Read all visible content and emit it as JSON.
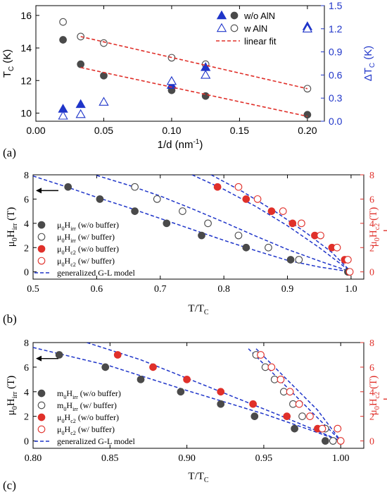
{
  "chart_data": [
    {
      "panel_label": "(a)",
      "type": "scatter",
      "xlabel_main": "1/d (nm",
      "xlabel_sup": "-1",
      "xlabel_end": ")",
      "ylabel_left_main": "T",
      "ylabel_left_sub": "C",
      "ylabel_left_end": " (K)",
      "ylabel_right_main": "ΔT",
      "ylabel_right_sub": "C",
      "ylabel_right_end": " (K)",
      "xlim": [
        0.0,
        0.2125
      ],
      "ylim_left": [
        9.5,
        16.6
      ],
      "ylim_right": [
        0.0,
        1.5
      ],
      "xticks": [
        0.0,
        0.05,
        0.1,
        0.15,
        0.2
      ],
      "xtick_labels": [
        "0.00",
        "0.05",
        "0.10",
        "0.15",
        "0.20"
      ],
      "yticks_left": [
        10,
        12,
        14,
        16
      ],
      "yticks_right": [
        0.0,
        0.3,
        0.6,
        0.9,
        1.2,
        1.5
      ],
      "ytick_labels_right": [
        "0.0",
        "0.3",
        "0.6",
        "0.9",
        "1.2",
        "1.5"
      ],
      "right_axis_color": "#1f35c9",
      "legend": [
        "w/o AlN",
        "w AlN",
        "linear fit"
      ],
      "series": [
        {
          "name": "w/o AlN",
          "axis": "left",
          "marker": "circle",
          "filled": true,
          "color": "#4a4a4a",
          "x": [
            0.02,
            0.033,
            0.05,
            0.1,
            0.125,
            0.2
          ],
          "y": [
            14.5,
            13.0,
            12.3,
            11.4,
            11.05,
            9.9
          ]
        },
        {
          "name": "w AlN",
          "axis": "left",
          "marker": "circle",
          "filled": false,
          "color": "#4a4a4a",
          "x": [
            0.02,
            0.033,
            0.05,
            0.1,
            0.125,
            0.2
          ],
          "y": [
            15.6,
            14.7,
            14.3,
            13.4,
            13.0,
            11.5
          ]
        },
        {
          "name": "w/o AlN",
          "axis": "right",
          "marker": "triangle",
          "filled": true,
          "color": "#1f35c9",
          "x": [
            0.02,
            0.033,
            0.1,
            0.125,
            0.2
          ],
          "y": [
            0.16,
            0.22,
            0.47,
            0.7,
            1.23
          ]
        },
        {
          "name": "w AlN",
          "axis": "right",
          "marker": "triangle",
          "filled": false,
          "color": "#1f35c9",
          "x": [
            0.02,
            0.033,
            0.05,
            0.1,
            0.125,
            0.2
          ],
          "y": [
            0.07,
            0.09,
            0.25,
            0.52,
            0.6,
            1.2
          ]
        },
        {
          "name": "linear fit",
          "axis": "left",
          "marker": "dashed-line",
          "color": "#e0302a",
          "x": [
            0.033,
            0.2
          ],
          "y": [
            12.8,
            9.8
          ]
        },
        {
          "name": "linear fit",
          "axis": "left",
          "marker": "dashed-line",
          "color": "#e0302a",
          "x": [
            0.033,
            0.2
          ],
          "y": [
            14.7,
            11.5
          ]
        }
      ]
    },
    {
      "panel_label": "(b)",
      "type": "scatter",
      "xlabel_main": "T/T",
      "xlabel_sub": "C",
      "ylabel_left": {
        "a": "μ",
        "b": "0",
        "c": "H",
        "d": "irr",
        "e": " (T)"
      },
      "ylabel_right": {
        "a": "μ",
        "b": "0",
        "c": "H",
        "d": "c2",
        "e": " (T)"
      },
      "right_axis_color": "#e0302a",
      "xlim": [
        0.5,
        1.02
      ],
      "ylim": [
        -0.6,
        8
      ],
      "xticks": [
        0.5,
        0.6,
        0.7,
        0.8,
        0.9,
        1.0
      ],
      "xtick_labels": [
        "0.5",
        "0.6",
        "0.7",
        "0.8",
        "0.9",
        "1.0"
      ],
      "yticks": [
        0,
        2,
        4,
        6,
        8
      ],
      "legend": [
        {
          "a": "μ",
          "b": "0",
          "c": "H",
          "d": "irr",
          "e": " (w/o buffer)"
        },
        {
          "a": "μ",
          "b": "0",
          "c": "H",
          "d": "irr",
          "e": " (w/ buffer)"
        },
        {
          "a": "μ",
          "b": "0",
          "c": "H",
          "d": "c2",
          "e": " (w/o buffer)"
        },
        {
          "a": "μ",
          "b": "0",
          "c": "H",
          "d": "c2",
          "e": " (w/ buffer)"
        },
        {
          "a": "generalized G-L model",
          "b": "",
          "c": "",
          "d": "",
          "e": ""
        }
      ],
      "series": [
        {
          "name": "Hirr w/o buffer",
          "marker": "circle",
          "filled": true,
          "color": "#4a4a4a",
          "x": [
            0.555,
            0.605,
            0.66,
            0.71,
            0.765,
            0.835,
            0.905,
            0.995
          ],
          "y": [
            7,
            6,
            5,
            4,
            3,
            2,
            1,
            0
          ]
        },
        {
          "name": "Hirr w/ buffer",
          "marker": "circle",
          "filled": false,
          "color": "#4a4a4a",
          "x": [
            0.66,
            0.695,
            0.735,
            0.775,
            0.823,
            0.87,
            0.918,
            0.997
          ],
          "y": [
            7,
            6,
            5,
            4,
            3,
            2,
            1,
            0
          ]
        },
        {
          "name": "Hc2 w/o buffer",
          "marker": "circle",
          "filled": true,
          "color": "#e0302a",
          "x": [
            0.79,
            0.835,
            0.875,
            0.908,
            0.943,
            0.97,
            0.99
          ],
          "y": [
            7,
            6,
            5,
            4,
            3,
            2,
            1
          ]
        },
        {
          "name": "Hc2 w/ buffer",
          "marker": "circle",
          "filled": false,
          "color": "#e0302a",
          "x": [
            0.823,
            0.853,
            0.893,
            0.922,
            0.952,
            0.978,
            0.995,
            0.998
          ],
          "y": [
            7,
            6,
            5,
            4,
            3,
            2,
            1,
            0
          ]
        },
        {
          "name": "G-L fit",
          "marker": "dashed-line",
          "color": "#1f35c9",
          "x": [
            0.5,
            0.55,
            0.6,
            0.65,
            0.7,
            0.75,
            0.8,
            0.85,
            0.9,
            0.95,
            1.0
          ],
          "y": [
            7.9,
            7.05,
            6.15,
            5.3,
            4.4,
            3.5,
            2.6,
            1.75,
            0.95,
            0.4,
            0.0
          ]
        },
        {
          "name": "G-L fit",
          "marker": "dashed-line",
          "color": "#1f35c9",
          "x": [
            0.6,
            0.65,
            0.7,
            0.75,
            0.8,
            0.85,
            0.9,
            0.95,
            1.0
          ],
          "y": [
            7.95,
            7.15,
            6.25,
            5.2,
            4.1,
            2.95,
            1.85,
            0.9,
            0.0
          ]
        },
        {
          "name": "G-L fit",
          "marker": "dashed-line",
          "color": "#1f35c9",
          "x": [
            0.75,
            0.8,
            0.85,
            0.9,
            0.95,
            1.0
          ],
          "y": [
            8.0,
            6.8,
            5.4,
            3.8,
            2.0,
            0.0
          ]
        },
        {
          "name": "G-L fit",
          "marker": "dashed-line",
          "color": "#1f35c9",
          "x": [
            0.78,
            0.83,
            0.88,
            0.93,
            0.97,
            1.0
          ],
          "y": [
            8.0,
            6.6,
            5.0,
            3.2,
            1.6,
            0.0
          ]
        }
      ]
    },
    {
      "panel_label": "(c)",
      "type": "scatter",
      "xlabel_main": "T/T",
      "xlabel_sub": "C",
      "ylabel_left": {
        "a": "μ",
        "b": "0",
        "c": "H",
        "d": "irr",
        "e": " (T)"
      },
      "ylabel_right": {
        "a": "μ",
        "b": "0",
        "c": "H",
        "d": "c2",
        "e": " (T)"
      },
      "right_axis_color": "#e0302a",
      "xlim": [
        0.8,
        1.015
      ],
      "ylim": [
        -0.6,
        8
      ],
      "xticks": [
        0.8,
        0.85,
        0.9,
        0.95,
        1.0
      ],
      "xtick_labels": [
        "0.80",
        "0.85",
        "0.90",
        "0.95",
        "1.00"
      ],
      "yticks": [
        0,
        2,
        4,
        6,
        8
      ],
      "legend": [
        {
          "a": "m",
          "b": "0",
          "c": "H",
          "d": "irr",
          "e": " (w/o buffer)"
        },
        {
          "a": "m",
          "b": "0",
          "c": "H",
          "d": "irr",
          "e": " (w/ buffer)"
        },
        {
          "a": "μ",
          "b": "0",
          "c": "H",
          "d": "c2",
          "e": " (w/o buffer)"
        },
        {
          "a": "μ",
          "b": "0",
          "c": "H",
          "d": "c2",
          "e": " (w/ buffer)"
        },
        {
          "a": "generalized G-L model",
          "b": "",
          "c": "",
          "d": "",
          "e": ""
        }
      ],
      "series": [
        {
          "name": "Hirr w/o buffer",
          "marker": "circle",
          "filled": true,
          "color": "#4a4a4a",
          "x": [
            0.817,
            0.847,
            0.87,
            0.896,
            0.922,
            0.944,
            0.97,
            0.99
          ],
          "y": [
            7,
            6,
            5,
            4,
            3,
            2,
            1,
            0
          ]
        },
        {
          "name": "Hirr w/ buffer",
          "marker": "circle",
          "filled": false,
          "color": "#4a4a4a",
          "x": [
            0.945,
            0.951,
            0.957,
            0.963,
            0.969,
            0.975,
            0.99,
            0.995
          ],
          "y": [
            7,
            6,
            5,
            4,
            3,
            2,
            1,
            0
          ]
        },
        {
          "name": "Hc2 w/o buffer",
          "marker": "circle",
          "filled": true,
          "color": "#e0302a",
          "x": [
            0.855,
            0.878,
            0.9,
            0.922,
            0.943,
            0.965,
            0.985
          ],
          "y": [
            7,
            6,
            5,
            4,
            3,
            2,
            1
          ]
        },
        {
          "name": "Hc2 w/ buffer",
          "marker": "circle",
          "filled": false,
          "color": "#e0302a",
          "x": [
            0.948,
            0.955,
            0.961,
            0.967,
            0.973,
            0.98,
            0.988,
            0.998,
            1.0
          ],
          "y": [
            7,
            6,
            5,
            4,
            3,
            2,
            1,
            1,
            0
          ]
        },
        {
          "name": "G-L fit",
          "marker": "dashed-line",
          "color": "#1f35c9",
          "x": [
            0.8,
            0.85,
            0.9,
            0.95,
            0.98,
            1.0
          ],
          "y": [
            7.6,
            6.1,
            4.1,
            2.2,
            0.9,
            0.0
          ]
        },
        {
          "name": "G-L fit",
          "marker": "dashed-line",
          "color": "#1f35c9",
          "x": [
            0.835,
            0.87,
            0.9,
            0.93,
            0.96,
            0.985,
            1.0
          ],
          "y": [
            8.0,
            6.6,
            5.1,
            3.6,
            2.1,
            0.8,
            0.0
          ]
        },
        {
          "name": "G-L fit",
          "marker": "dashed-line",
          "color": "#1f35c9",
          "x": [
            0.94,
            0.96,
            0.98,
            1.0
          ],
          "y": [
            7.5,
            5.0,
            2.5,
            0.0
          ]
        },
        {
          "name": "G-L fit",
          "marker": "dashed-line",
          "color": "#1f35c9",
          "x": [
            0.945,
            0.965,
            0.985,
            1.0
          ],
          "y": [
            7.5,
            5.0,
            2.5,
            0.0
          ]
        }
      ]
    }
  ]
}
